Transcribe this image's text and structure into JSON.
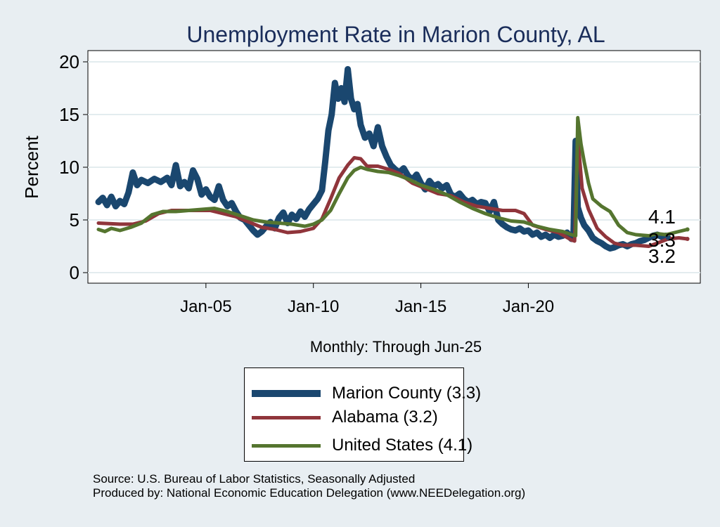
{
  "chart_data": {
    "type": "line",
    "title": "Unemployment Rate in Marion  County, AL",
    "xlabel": "Monthly: Through Jun-25",
    "ylabel": "Percent",
    "ylim": [
      0,
      20
    ],
    "yticks": [
      0,
      5,
      10,
      15,
      20
    ],
    "xlim": [
      2000.0,
      2028.0
    ],
    "xticks": [
      {
        "value": 2005.0,
        "label": "Jan-05"
      },
      {
        "value": 2010.0,
        "label": "Jan-10"
      },
      {
        "value": 2015.0,
        "label": "Jan-15"
      },
      {
        "value": 2020.0,
        "label": "Jan-20"
      }
    ],
    "grid": true,
    "series": [
      {
        "name": "Marion  County",
        "legend": "Marion  County (3.3)",
        "color": "#1a476f",
        "end_label": "3.3",
        "points": [
          [
            2000.0,
            6.7
          ],
          [
            2000.2,
            7.1
          ],
          [
            2000.4,
            6.4
          ],
          [
            2000.6,
            7.2
          ],
          [
            2000.8,
            6.3
          ],
          [
            2001.0,
            6.8
          ],
          [
            2001.2,
            6.5
          ],
          [
            2001.4,
            7.6
          ],
          [
            2001.6,
            9.5
          ],
          [
            2001.8,
            8.3
          ],
          [
            2002.0,
            8.8
          ],
          [
            2002.3,
            8.5
          ],
          [
            2002.6,
            8.9
          ],
          [
            2002.9,
            8.6
          ],
          [
            2003.2,
            9.0
          ],
          [
            2003.4,
            8.3
          ],
          [
            2003.6,
            10.2
          ],
          [
            2003.8,
            8.2
          ],
          [
            2004.0,
            8.6
          ],
          [
            2004.2,
            8.0
          ],
          [
            2004.4,
            9.7
          ],
          [
            2004.6,
            8.9
          ],
          [
            2004.8,
            7.4
          ],
          [
            2005.0,
            7.9
          ],
          [
            2005.2,
            7.2
          ],
          [
            2005.4,
            6.9
          ],
          [
            2005.6,
            8.2
          ],
          [
            2005.8,
            6.9
          ],
          [
            2006.0,
            6.3
          ],
          [
            2006.2,
            6.6
          ],
          [
            2006.4,
            5.8
          ],
          [
            2006.6,
            5.2
          ],
          [
            2006.8,
            5.0
          ],
          [
            2007.0,
            4.5
          ],
          [
            2007.2,
            4.0
          ],
          [
            2007.4,
            3.6
          ],
          [
            2007.6,
            3.9
          ],
          [
            2007.8,
            4.4
          ],
          [
            2008.0,
            4.8
          ],
          [
            2008.2,
            4.2
          ],
          [
            2008.4,
            5.2
          ],
          [
            2008.6,
            5.7
          ],
          [
            2008.8,
            4.7
          ],
          [
            2009.0,
            5.5
          ],
          [
            2009.2,
            5.1
          ],
          [
            2009.4,
            5.8
          ],
          [
            2009.6,
            5.3
          ],
          [
            2009.8,
            6.0
          ],
          [
            2010.0,
            6.5
          ],
          [
            2010.2,
            7.0
          ],
          [
            2010.4,
            7.8
          ],
          [
            2010.55,
            10.5
          ],
          [
            2010.7,
            13.5
          ],
          [
            2010.85,
            15.0
          ],
          [
            2011.0,
            18.0
          ],
          [
            2011.15,
            16.5
          ],
          [
            2011.3,
            17.5
          ],
          [
            2011.45,
            16.2
          ],
          [
            2011.6,
            19.3
          ],
          [
            2011.75,
            16.5
          ],
          [
            2011.9,
            15.5
          ],
          [
            2012.05,
            16.0
          ],
          [
            2012.2,
            14.0
          ],
          [
            2012.4,
            12.8
          ],
          [
            2012.6,
            13.2
          ],
          [
            2012.8,
            12.0
          ],
          [
            2013.0,
            13.8
          ],
          [
            2013.2,
            12.0
          ],
          [
            2013.4,
            11.0
          ],
          [
            2013.6,
            10.2
          ],
          [
            2013.8,
            9.8
          ],
          [
            2014.0,
            9.5
          ],
          [
            2014.2,
            9.9
          ],
          [
            2014.4,
            9.2
          ],
          [
            2014.6,
            8.8
          ],
          [
            2014.8,
            9.3
          ],
          [
            2015.0,
            8.5
          ],
          [
            2015.2,
            7.9
          ],
          [
            2015.4,
            8.7
          ],
          [
            2015.6,
            8.2
          ],
          [
            2015.8,
            8.4
          ],
          [
            2016.0,
            8.0
          ],
          [
            2016.2,
            8.3
          ],
          [
            2016.4,
            7.4
          ],
          [
            2016.6,
            7.2
          ],
          [
            2016.8,
            7.5
          ],
          [
            2017.0,
            7.0
          ],
          [
            2017.2,
            6.7
          ],
          [
            2017.4,
            6.9
          ],
          [
            2017.6,
            6.5
          ],
          [
            2017.8,
            6.7
          ],
          [
            2018.0,
            6.6
          ],
          [
            2018.2,
            5.8
          ],
          [
            2018.4,
            6.7
          ],
          [
            2018.6,
            5.0
          ],
          [
            2018.8,
            4.6
          ],
          [
            2019.0,
            4.3
          ],
          [
            2019.2,
            4.1
          ],
          [
            2019.4,
            4.0
          ],
          [
            2019.6,
            4.2
          ],
          [
            2019.8,
            3.9
          ],
          [
            2020.0,
            4.0
          ],
          [
            2020.2,
            3.6
          ],
          [
            2020.4,
            3.8
          ],
          [
            2020.6,
            3.4
          ],
          [
            2020.8,
            3.6
          ],
          [
            2021.0,
            3.3
          ],
          [
            2021.2,
            3.6
          ],
          [
            2021.4,
            3.4
          ],
          [
            2021.6,
            3.5
          ],
          [
            2021.8,
            3.8
          ],
          [
            2022.0,
            3.2
          ],
          [
            2022.1,
            3.5
          ],
          [
            2022.2,
            12.5
          ],
          [
            2022.3,
            6.2
          ],
          [
            2022.45,
            5.2
          ],
          [
            2022.6,
            4.5
          ],
          [
            2022.8,
            4.0
          ],
          [
            2023.0,
            3.3
          ],
          [
            2023.2,
            3.0
          ],
          [
            2023.4,
            2.8
          ],
          [
            2023.6,
            2.5
          ],
          [
            2023.8,
            2.3
          ],
          [
            2024.0,
            2.4
          ],
          [
            2024.2,
            2.6
          ],
          [
            2024.4,
            2.7
          ],
          [
            2024.6,
            2.5
          ],
          [
            2024.8,
            2.7
          ],
          [
            2025.0,
            2.8
          ],
          [
            2025.2,
            3.0
          ],
          [
            2025.4,
            3.1
          ],
          [
            2025.6,
            3.3
          ],
          [
            2025.8,
            3.5
          ],
          [
            2026.0,
            3.6
          ],
          [
            2026.2,
            3.4
          ],
          [
            2026.4,
            3.5
          ],
          [
            2026.5,
            3.3
          ]
        ]
      },
      {
        "name": "Alabama",
        "legend": "Alabama (3.2)",
        "color": "#90353b",
        "end_label": "3.2",
        "points": [
          [
            2000.0,
            4.7
          ],
          [
            2001.0,
            4.6
          ],
          [
            2001.6,
            4.6
          ],
          [
            2002.2,
            4.9
          ],
          [
            2002.8,
            5.6
          ],
          [
            2003.4,
            5.9
          ],
          [
            2004.0,
            5.9
          ],
          [
            2004.6,
            5.9
          ],
          [
            2005.2,
            5.9
          ],
          [
            2005.8,
            5.6
          ],
          [
            2006.4,
            5.3
          ],
          [
            2007.0,
            4.8
          ],
          [
            2007.6,
            4.3
          ],
          [
            2008.2,
            4.1
          ],
          [
            2008.8,
            3.8
          ],
          [
            2009.4,
            3.9
          ],
          [
            2010.0,
            4.2
          ],
          [
            2010.4,
            5.1
          ],
          [
            2010.8,
            7.0
          ],
          [
            2011.2,
            9.0
          ],
          [
            2011.6,
            10.2
          ],
          [
            2011.9,
            10.9
          ],
          [
            2012.2,
            10.8
          ],
          [
            2012.5,
            10.1
          ],
          [
            2013.0,
            10.1
          ],
          [
            2013.5,
            9.8
          ],
          [
            2014.0,
            9.4
          ],
          [
            2014.6,
            8.5
          ],
          [
            2015.2,
            8.0
          ],
          [
            2015.8,
            7.5
          ],
          [
            2016.4,
            7.3
          ],
          [
            2017.0,
            6.7
          ],
          [
            2017.6,
            6.3
          ],
          [
            2018.2,
            6.1
          ],
          [
            2018.8,
            5.9
          ],
          [
            2019.4,
            5.9
          ],
          [
            2019.8,
            5.6
          ],
          [
            2020.2,
            4.5
          ],
          [
            2020.8,
            4.1
          ],
          [
            2021.4,
            3.8
          ],
          [
            2022.0,
            3.1
          ],
          [
            2022.15,
            3.0
          ],
          [
            2022.3,
            12.9
          ],
          [
            2022.5,
            8.0
          ],
          [
            2022.8,
            6.0
          ],
          [
            2023.2,
            4.2
          ],
          [
            2023.6,
            3.4
          ],
          [
            2024.0,
            2.8
          ],
          [
            2024.4,
            2.6
          ],
          [
            2025.0,
            2.6
          ],
          [
            2025.6,
            2.5
          ],
          [
            2026.0,
            2.8
          ],
          [
            2026.5,
            3.2
          ],
          [
            2027.0,
            3.3
          ],
          [
            2027.4,
            3.2
          ]
        ]
      },
      {
        "name": "United States",
        "legend": "United States (4.1)",
        "color": "#55752f",
        "end_label": "4.1",
        "points": [
          [
            2000.0,
            4.1
          ],
          [
            2000.3,
            3.9
          ],
          [
            2000.6,
            4.2
          ],
          [
            2001.0,
            4.0
          ],
          [
            2001.5,
            4.3
          ],
          [
            2002.0,
            4.7
          ],
          [
            2002.5,
            5.5
          ],
          [
            2003.0,
            5.8
          ],
          [
            2003.6,
            5.8
          ],
          [
            2004.2,
            5.9
          ],
          [
            2004.8,
            6.0
          ],
          [
            2005.4,
            6.1
          ],
          [
            2006.0,
            5.8
          ],
          [
            2006.6,
            5.4
          ],
          [
            2007.2,
            5.0
          ],
          [
            2007.8,
            4.8
          ],
          [
            2008.4,
            4.7
          ],
          [
            2009.0,
            4.6
          ],
          [
            2009.6,
            4.4
          ],
          [
            2010.0,
            4.6
          ],
          [
            2010.4,
            5.0
          ],
          [
            2010.8,
            5.9
          ],
          [
            2011.2,
            7.5
          ],
          [
            2011.6,
            9.0
          ],
          [
            2011.9,
            9.7
          ],
          [
            2012.2,
            10.0
          ],
          [
            2012.5,
            9.8
          ],
          [
            2013.0,
            9.6
          ],
          [
            2013.5,
            9.5
          ],
          [
            2014.0,
            9.2
          ],
          [
            2014.5,
            8.8
          ],
          [
            2015.0,
            8.3
          ],
          [
            2015.6,
            7.9
          ],
          [
            2016.2,
            7.4
          ],
          [
            2016.8,
            6.7
          ],
          [
            2017.4,
            6.1
          ],
          [
            2018.0,
            5.6
          ],
          [
            2018.6,
            5.2
          ],
          [
            2019.2,
            4.9
          ],
          [
            2019.8,
            4.8
          ],
          [
            2020.4,
            4.4
          ],
          [
            2021.0,
            4.1
          ],
          [
            2021.6,
            3.9
          ],
          [
            2022.0,
            3.6
          ],
          [
            2022.2,
            3.5
          ],
          [
            2022.3,
            14.7
          ],
          [
            2022.45,
            12.2
          ],
          [
            2022.6,
            10.5
          ],
          [
            2022.8,
            8.5
          ],
          [
            2023.0,
            7.0
          ],
          [
            2023.4,
            6.3
          ],
          [
            2023.8,
            5.8
          ],
          [
            2024.2,
            4.5
          ],
          [
            2024.6,
            3.8
          ],
          [
            2025.0,
            3.6
          ],
          [
            2025.6,
            3.5
          ],
          [
            2026.0,
            3.7
          ],
          [
            2026.4,
            3.6
          ],
          [
            2026.8,
            3.8
          ],
          [
            2027.2,
            4.0
          ],
          [
            2027.4,
            4.1
          ]
        ]
      }
    ],
    "source_lines": [
      "Source: U.S. Bureau of Labor Statistics, Seasonally Adjusted",
      "Produced by: National Economic Education Delegation (www.NEEDelegation.org)"
    ]
  }
}
